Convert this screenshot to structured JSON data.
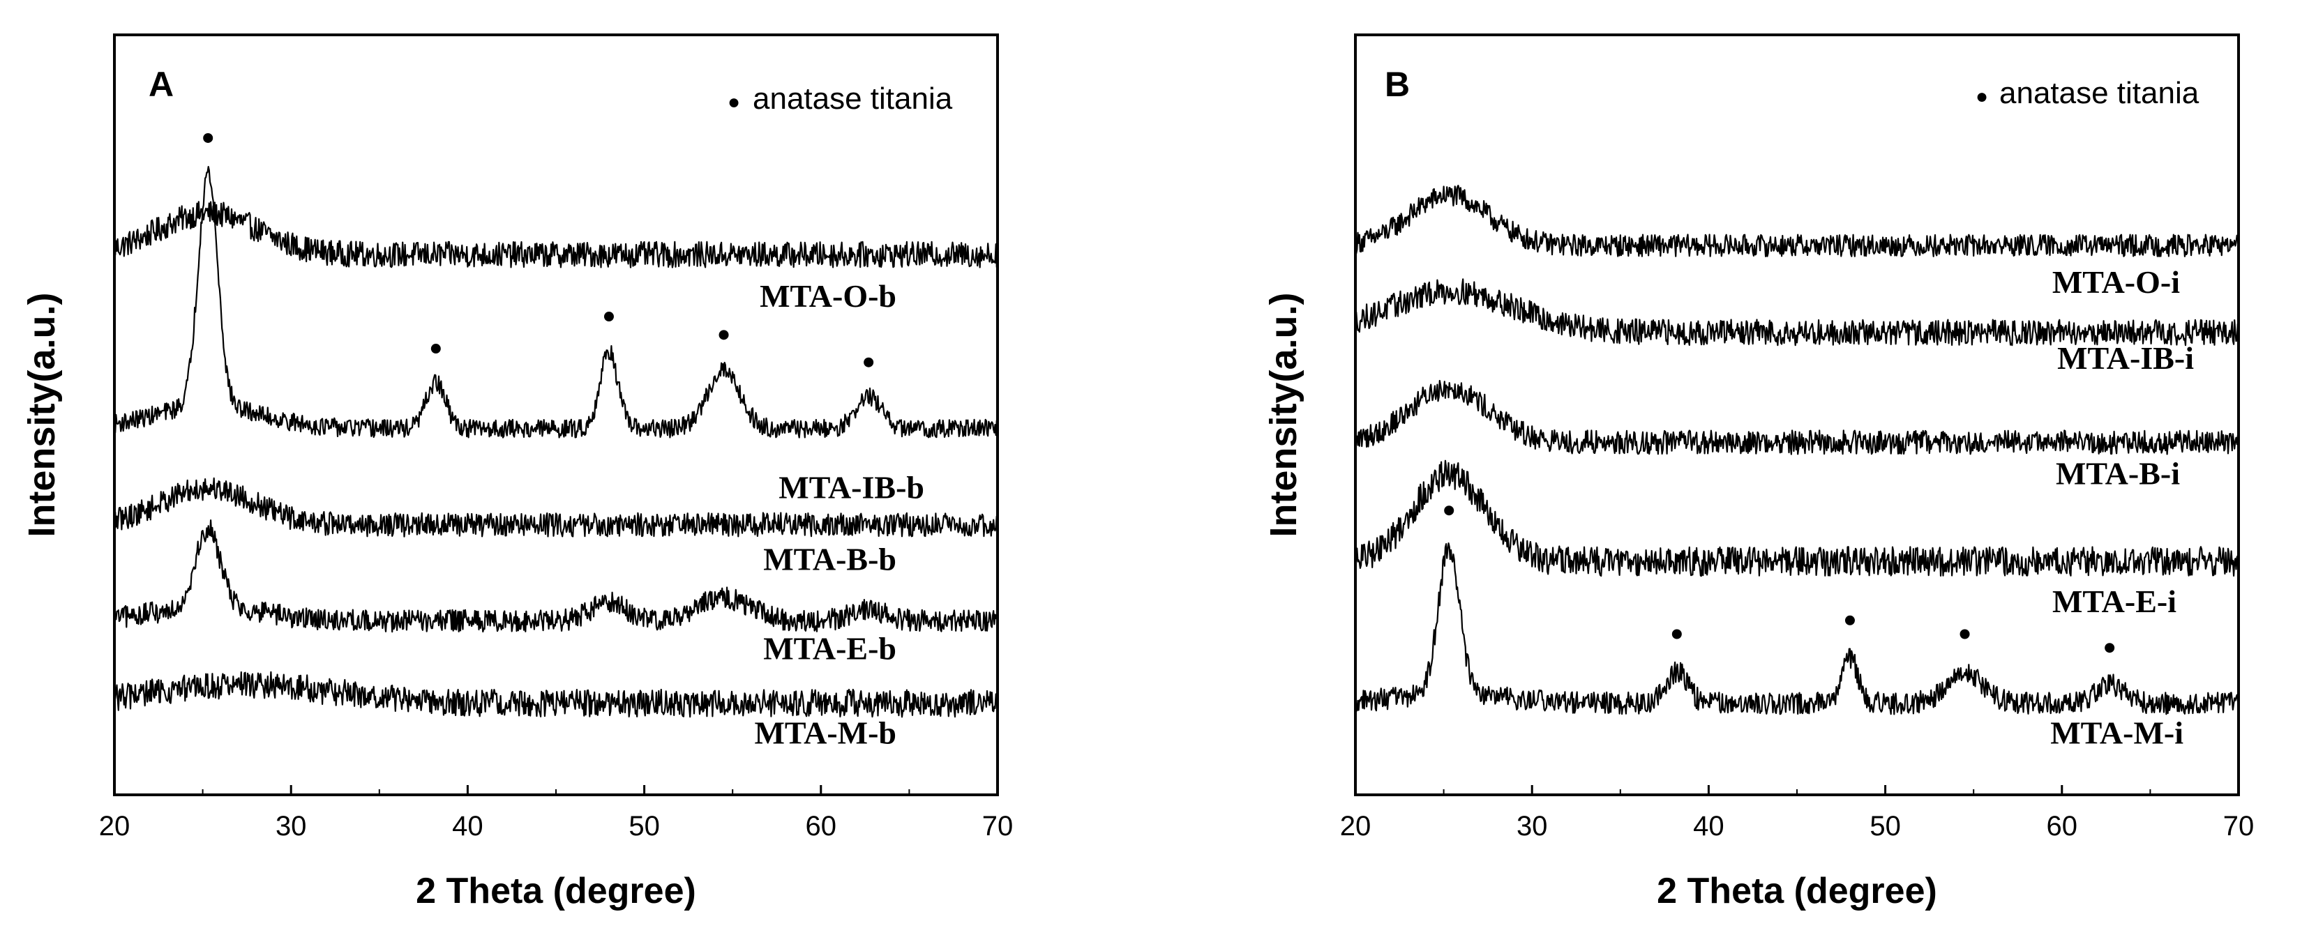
{
  "chart_data": [
    {
      "type": "line",
      "panel": "A",
      "xlabel": "2 Theta (degree)",
      "ylabel": "Intensity(a.u.)",
      "xlim": [
        20,
        70
      ],
      "xticks": [
        20,
        30,
        40,
        50,
        60,
        70
      ],
      "y_units": "arbitrary (stacked, offset)",
      "legend": {
        "marker": "●",
        "label": "anatase titania",
        "placement": "top-right"
      },
      "series": [
        {
          "name": "MTA-O-b",
          "baseline": 5.9,
          "broad_hump": {
            "center": 25.3,
            "height": 0.45,
            "width": 2.8
          },
          "peaks": [],
          "noise": 0.14
        },
        {
          "name": "MTA-IB-b",
          "baseline": 4.0,
          "broad_hump": {
            "center": 25.3,
            "height": 0.25,
            "width": 3.0
          },
          "peaks": [
            {
              "x": 25.3,
              "height": 2.55,
              "width": 0.55
            },
            {
              "x": 38.2,
              "height": 0.5,
              "width": 0.55
            },
            {
              "x": 48.0,
              "height": 0.85,
              "width": 0.5
            },
            {
              "x": 54.5,
              "height": 0.65,
              "width": 0.9
            },
            {
              "x": 62.7,
              "height": 0.35,
              "width": 0.7
            }
          ],
          "marked_peaks": [
            25.3,
            38.2,
            48.0,
            54.5,
            62.7
          ],
          "noise": 0.1
        },
        {
          "name": "MTA-B-b",
          "baseline": 2.95,
          "broad_hump": {
            "center": 25.3,
            "height": 0.4,
            "width": 2.6
          },
          "peaks": [],
          "noise": 0.13
        },
        {
          "name": "MTA-E-b",
          "baseline": 1.9,
          "broad_hump": {
            "center": 25.3,
            "height": 0.15,
            "width": 3.0
          },
          "peaks": [
            {
              "x": 25.3,
              "height": 0.85,
              "width": 0.7
            },
            {
              "x": 48.0,
              "height": 0.2,
              "width": 1.0
            },
            {
              "x": 54.5,
              "height": 0.25,
              "width": 1.5
            },
            {
              "x": 62.7,
              "height": 0.12,
              "width": 1.0
            }
          ],
          "marked_peaks": [],
          "noise": 0.12
        },
        {
          "name": "MTA-M-b",
          "baseline": 1.0,
          "broad_hump": {
            "center": 27.5,
            "height": 0.2,
            "width": 5.0
          },
          "peaks": [],
          "noise": 0.15
        }
      ],
      "ylim": [
        0,
        8.3
      ]
    },
    {
      "type": "line",
      "panel": "B",
      "xlabel": "2 Theta (degree)",
      "ylabel": "Intensity(a.u.)",
      "xlim": [
        20,
        70
      ],
      "xticks": [
        20,
        30,
        40,
        50,
        60,
        70
      ],
      "y_units": "arbitrary (stacked, offset)",
      "legend": {
        "marker": "●",
        "label": "anatase titania",
        "placement": "top-right"
      },
      "series": [
        {
          "name": "MTA-O-i",
          "baseline": 6.0,
          "broad_hump": {
            "center": 25.3,
            "height": 0.55,
            "width": 2.2
          },
          "peaks": [],
          "noise": 0.12
        },
        {
          "name": "MTA-IB-i",
          "baseline": 5.05,
          "broad_hump": {
            "center": 25.5,
            "height": 0.45,
            "width": 3.5
          },
          "peaks": [],
          "noise": 0.14
        },
        {
          "name": "MTA-B-i",
          "baseline": 3.85,
          "broad_hump": {
            "center": 25.3,
            "height": 0.6,
            "width": 2.2
          },
          "peaks": [],
          "noise": 0.13
        },
        {
          "name": "MTA-E-i",
          "baseline": 2.55,
          "broad_hump": {
            "center": 25.3,
            "height": 0.95,
            "width": 2.0
          },
          "peaks": [],
          "noise": 0.16
        },
        {
          "name": "MTA-M-i",
          "baseline": 1.0,
          "broad_hump": {
            "center": 25.3,
            "height": 0.1,
            "width": 3.0
          },
          "peaks": [
            {
              "x": 25.3,
              "height": 1.6,
              "width": 0.6
            },
            {
              "x": 38.2,
              "height": 0.35,
              "width": 0.6
            },
            {
              "x": 48.0,
              "height": 0.5,
              "width": 0.45
            },
            {
              "x": 54.5,
              "height": 0.35,
              "width": 1.0
            },
            {
              "x": 62.7,
              "height": 0.2,
              "width": 0.8
            }
          ],
          "marked_peaks": [
            25.3,
            38.2,
            48.0,
            54.5,
            62.7
          ],
          "noise": 0.12
        }
      ],
      "ylim": [
        0,
        8.3
      ]
    }
  ]
}
